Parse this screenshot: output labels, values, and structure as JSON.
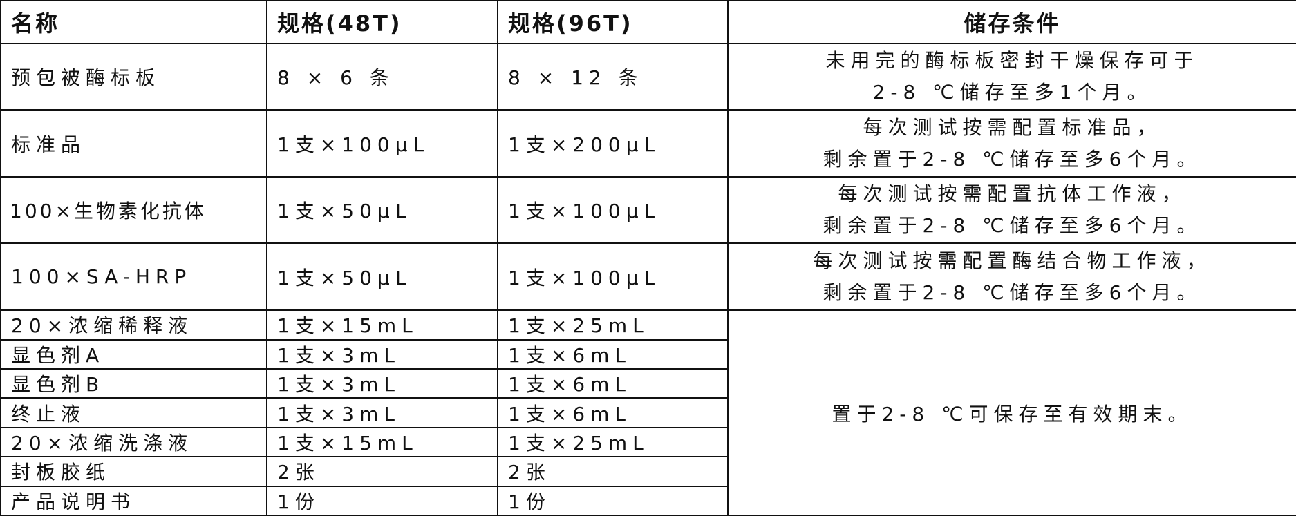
{
  "headers": [
    "名称",
    "规格(48T)",
    "规格(96T)",
    "储存条件"
  ],
  "rows": [
    {
      "name": "预包被酶标板",
      "spec48": "8 × 6 条",
      "spec96": "8 × 12 条",
      "storage": [
        "未用完的酶标板密封干燥保存可于",
        "2-8 ℃储存至多1个月。"
      ]
    },
    {
      "name": "标准品",
      "spec48": "1支×100μL",
      "spec96": "1支×200μL",
      "storage": [
        "每次测试按需配置标准品，",
        "剩余置于2-8 ℃储存至多6个月。"
      ]
    },
    {
      "name": "100×生物素化抗体",
      "spec48": "1支×50μL",
      "spec96": "1支×100μL",
      "storage": [
        "每次测试按需配置抗体工作液，",
        "剩余置于2-8 ℃储存至多6个月。"
      ]
    },
    {
      "name": "100×SA-HRP",
      "spec48": "1支×50μL",
      "spec96": "1支×100μL",
      "storage": [
        "每次测试按需配置酶结合物工作液，",
        "剩余置于2-8 ℃储存至多6个月。"
      ]
    },
    {
      "name": "20×浓缩稀释液",
      "spec48": "1支×15mL",
      "spec96": "1支×25mL"
    },
    {
      "name": "显色剂A",
      "spec48": "1支×3mL",
      "spec96": "1支×6mL"
    },
    {
      "name": "显色剂B",
      "spec48": "1支×3mL",
      "spec96": "1支×6mL"
    },
    {
      "name": "终止液",
      "spec48": "1支×3mL",
      "spec96": "1支×6mL"
    },
    {
      "name": "20×浓缩洗涤液",
      "spec48": "1支×15mL",
      "spec96": "1支×25mL"
    },
    {
      "name": "封板胶纸",
      "spec48": "2张",
      "spec96": "2张"
    },
    {
      "name": "产品说明书",
      "spec48": "1份",
      "spec96": "1份"
    }
  ],
  "shared_storage": "置于2-8 ℃可保存至有效期末。"
}
